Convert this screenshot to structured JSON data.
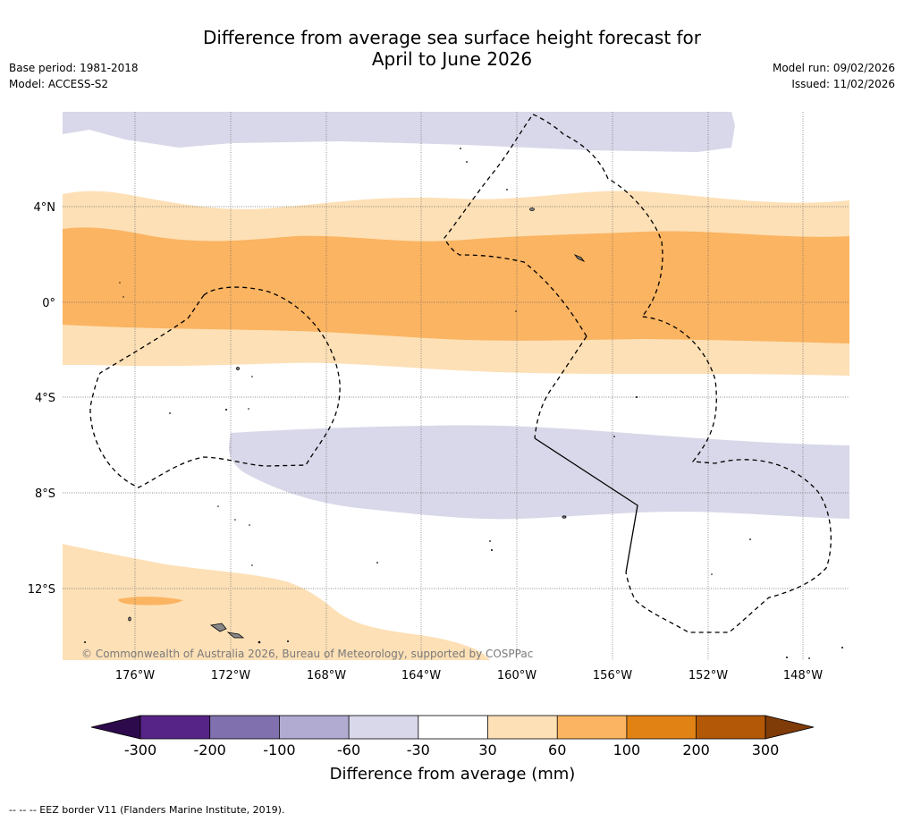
{
  "title": {
    "line1": "Difference from average sea surface height forecast for",
    "line2": "April to June 2026"
  },
  "meta": {
    "base_period": "Base period: 1981-2018",
    "model": "Model: ACCESS-S2",
    "model_run": "Model run: 09/02/2026",
    "issued": "Issued: 11/02/2026"
  },
  "map": {
    "lat_labels": [
      "4°N",
      "0°",
      "4°S",
      "8°S",
      "12°S"
    ],
    "lon_labels": [
      "176°W",
      "172°W",
      "168°W",
      "164°W",
      "160°W",
      "156°W",
      "152°W",
      "148°W"
    ],
    "copyright": "© Commonwealth of Australia 2026, Bureau of Meteorology, supported by COSPPac"
  },
  "colorbar": {
    "label": "Difference from average (mm)",
    "ticks": [
      "-300",
      "-200",
      "-100",
      "-60",
      "-30",
      "30",
      "60",
      "100",
      "200",
      "300"
    ],
    "colors": {
      "below_min": "#2d0a4b",
      "c1": "#562386",
      "c2": "#8070ae",
      "c3": "#b1aad1",
      "c4": "#d8d8ea",
      "c5": "#ffffff",
      "c6": "#fde0b6",
      "c7": "#fbb461",
      "c8": "#e08214",
      "c9": "#b35806",
      "above_max": "#7f3b08"
    }
  },
  "footnote": "-- -- -- EEZ border V11 (Flanders Marine Institute, 2019)."
}
